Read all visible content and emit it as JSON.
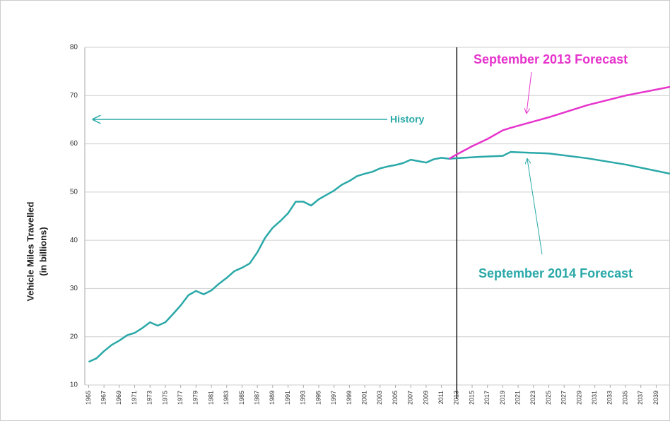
{
  "chart_data": {
    "type": "line",
    "ylabel": [
      "Vehicle Miles Travelled",
      "(in billions)"
    ],
    "xlim": [
      1964.5,
      2040.8
    ],
    "ylim": [
      10,
      80
    ],
    "yticks": [
      10,
      20,
      30,
      40,
      50,
      60,
      70,
      80
    ],
    "xticks": [
      1965,
      1967,
      1969,
      1971,
      1973,
      1975,
      1977,
      1979,
      1981,
      1983,
      1985,
      1987,
      1989,
      1991,
      1993,
      1995,
      1997,
      1999,
      2001,
      2003,
      2005,
      2007,
      2009,
      2011,
      2013,
      2015,
      2017,
      2019,
      2021,
      2023,
      2025,
      2027,
      2029,
      2031,
      2033,
      2035,
      2037,
      2039
    ],
    "grid": true,
    "divider_x": 2013,
    "series": [
      {
        "name": "History",
        "color": "#2aa8a8",
        "x": [
          1965,
          1966,
          1967,
          1968,
          1969,
          1970,
          1971,
          1972,
          1973,
          1974,
          1975,
          1976,
          1977,
          1978,
          1979,
          1980,
          1981,
          1982,
          1983,
          1984,
          1985,
          1986,
          1987,
          1988,
          1989,
          1990,
          1991,
          1992,
          1993,
          1994,
          1995,
          1996,
          1997,
          1998,
          1999,
          2000,
          2001,
          2002,
          2003,
          2004,
          2005,
          2006,
          2007,
          2008,
          2009,
          2010,
          2011,
          2012,
          2013
        ],
        "values": [
          14.8,
          15.5,
          17,
          18.3,
          19.2,
          20.3,
          20.8,
          21.8,
          23,
          22.3,
          23,
          24.7,
          26.5,
          28.6,
          29.5,
          28.8,
          29.6,
          31,
          32.2,
          33.6,
          34.3,
          35.2,
          37.5,
          40.5,
          42.6,
          44,
          45.6,
          48,
          48,
          47.2,
          48.5,
          49.4,
          50.3,
          51.5,
          52.3,
          53.3,
          53.8,
          54.2,
          54.9,
          55.3,
          55.6,
          56,
          56.7,
          56.4,
          56.1,
          56.8,
          57.1,
          56.9,
          57.0
        ]
      },
      {
        "name": "September 2013 Forecast",
        "color": "#e633cc",
        "x": [
          2012,
          2013,
          2015,
          2017,
          2019,
          2020,
          2025,
          2030,
          2035,
          2040.8
        ],
        "values": [
          56.9,
          57.8,
          59.5,
          61,
          62.8,
          63.3,
          65.5,
          68,
          70,
          71.8
        ]
      },
      {
        "name": "September 2014 Forecast",
        "color": "#2aa8a8",
        "x": [
          2013,
          2016,
          2019,
          2020,
          2025,
          2030,
          2035,
          2040.8
        ],
        "values": [
          57.0,
          57.3,
          57.5,
          58.3,
          58.0,
          57.0,
          55.7,
          53.8
        ]
      }
    ]
  }
}
